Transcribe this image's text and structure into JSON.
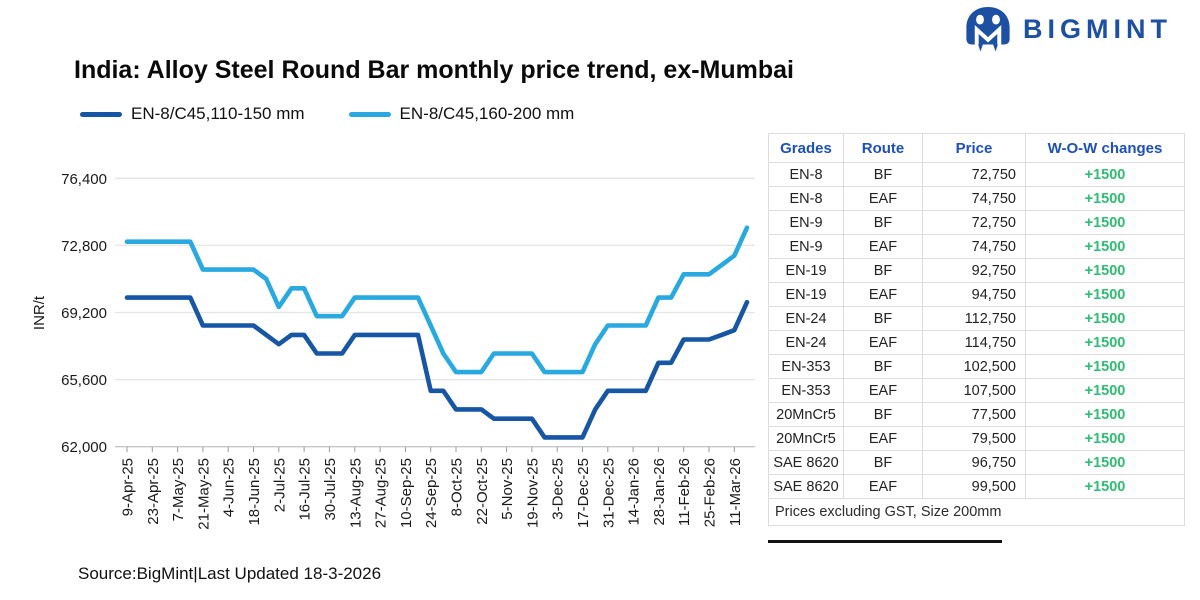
{
  "logo": {
    "text": "BIGMINT",
    "color": "#1d4fa3"
  },
  "header": {
    "title": "India: Alloy Steel Round Bar monthly price trend, ex-Mumbai"
  },
  "legend": [
    {
      "label": "EN-8/C45,110-150 mm",
      "color": "#1656a4"
    },
    {
      "label": "EN-8/C45,160-200 mm",
      "color": "#29a9e0"
    }
  ],
  "chart_data": {
    "type": "line",
    "title": "India: Alloy Steel Round Bar monthly price trend, ex-Mumbai",
    "xlabel": "",
    "ylabel": "INR/t",
    "ylim": [
      62000,
      76400
    ],
    "y_ticks": [
      62000,
      65600,
      69200,
      72800,
      76400
    ],
    "grid": "horizontal",
    "legend_position": "top-left",
    "x_labels_shown_every": 2,
    "x_labels": [
      "9-Apr-25",
      "23-Apr-25",
      "7-May-25",
      "21-May-25",
      "4-Jun-25",
      "18-Jun-25",
      "2-Jul-25",
      "16-Jul-25",
      "30-Jul-25",
      "13-Aug-25",
      "27-Aug-25",
      "10-Sep-25",
      "24-Sep-25",
      "8-Oct-25",
      "22-Oct-25",
      "5-Nov-25",
      "19-Nov-25",
      "3-Dec-25",
      "17-Dec-25",
      "31-Dec-25",
      "14-Jan-26",
      "28-Jan-26",
      "11-Feb-26",
      "25-Feb-26",
      "11-Mar-26"
    ],
    "x": [
      "9-Apr-25",
      "16-Apr-25",
      "23-Apr-25",
      "30-Apr-25",
      "7-May-25",
      "14-May-25",
      "21-May-25",
      "28-May-25",
      "4-Jun-25",
      "11-Jun-25",
      "18-Jun-25",
      "25-Jun-25",
      "2-Jul-25",
      "9-Jul-25",
      "16-Jul-25",
      "23-Jul-25",
      "30-Jul-25",
      "6-Aug-25",
      "13-Aug-25",
      "20-Aug-25",
      "27-Aug-25",
      "3-Sep-25",
      "10-Sep-25",
      "17-Sep-25",
      "24-Sep-25",
      "1-Oct-25",
      "8-Oct-25",
      "15-Oct-25",
      "22-Oct-25",
      "29-Oct-25",
      "5-Nov-25",
      "12-Nov-25",
      "19-Nov-25",
      "26-Nov-25",
      "3-Dec-25",
      "10-Dec-25",
      "17-Dec-25",
      "24-Dec-25",
      "31-Dec-25",
      "7-Jan-26",
      "14-Jan-26",
      "21-Jan-26",
      "28-Jan-26",
      "4-Feb-26",
      "11-Feb-26",
      "18-Feb-26",
      "25-Feb-26",
      "4-Mar-26",
      "11-Mar-26",
      "18-Mar-26"
    ],
    "series": [
      {
        "name": "EN-8/C45,110-150 mm",
        "color": "#1656a4",
        "values": [
          70000,
          70000,
          70000,
          70000,
          70000,
          70000,
          68500,
          68500,
          68500,
          68500,
          68500,
          68000,
          67500,
          68000,
          68000,
          67000,
          67000,
          67000,
          68000,
          68000,
          68000,
          68000,
          68000,
          68000,
          65000,
          65000,
          64000,
          64000,
          64000,
          63500,
          63500,
          63500,
          63500,
          62500,
          62500,
          62500,
          62500,
          64000,
          65000,
          65000,
          65000,
          65000,
          66500,
          66500,
          67750,
          67750,
          67750,
          68000,
          68250,
          69750
        ]
      },
      {
        "name": "EN-8/C45,160-200 mm",
        "color": "#29a9e0",
        "values": [
          73000,
          73000,
          73000,
          73000,
          73000,
          73000,
          71500,
          71500,
          71500,
          71500,
          71500,
          71000,
          69500,
          70500,
          70500,
          69000,
          69000,
          69000,
          70000,
          70000,
          70000,
          70000,
          70000,
          70000,
          68500,
          67000,
          66000,
          66000,
          66000,
          67000,
          67000,
          67000,
          67000,
          66000,
          66000,
          66000,
          66000,
          67500,
          68500,
          68500,
          68500,
          68500,
          70000,
          70000,
          71250,
          71250,
          71250,
          71750,
          72250,
          73750
        ]
      }
    ]
  },
  "table": {
    "headers": [
      "Grades",
      "Route",
      "Price",
      "W-O-W changes"
    ],
    "header_color": "#1d50b8",
    "positive_color": "#2fbd73",
    "rows": [
      [
        "EN-8",
        "BF",
        "72,750",
        "+1500"
      ],
      [
        "EN-8",
        "EAF",
        "74,750",
        "+1500"
      ],
      [
        "EN-9",
        "BF",
        "72,750",
        "+1500"
      ],
      [
        "EN-9",
        "EAF",
        "74,750",
        "+1500"
      ],
      [
        "EN-19",
        "BF",
        "92,750",
        "+1500"
      ],
      [
        "EN-19",
        "EAF",
        "94,750",
        "+1500"
      ],
      [
        "EN-24",
        "BF",
        "112,750",
        "+1500"
      ],
      [
        "EN-24",
        "EAF",
        "114,750",
        "+1500"
      ],
      [
        "EN-353",
        "BF",
        "102,500",
        "+1500"
      ],
      [
        "EN-353",
        "EAF",
        "107,500",
        "+1500"
      ],
      [
        "20MnCr5",
        "BF",
        "77,500",
        "+1500"
      ],
      [
        "20MnCr5",
        "EAF",
        "79,500",
        "+1500"
      ],
      [
        "SAE 8620",
        "BF",
        "96,750",
        "+1500"
      ],
      [
        "SAE 8620",
        "EAF",
        "99,500",
        "+1500"
      ]
    ],
    "footer": "Prices excluding GST, Size 200mm"
  },
  "source_note": "Source:BigMint|Last Updated 18-3-2026"
}
